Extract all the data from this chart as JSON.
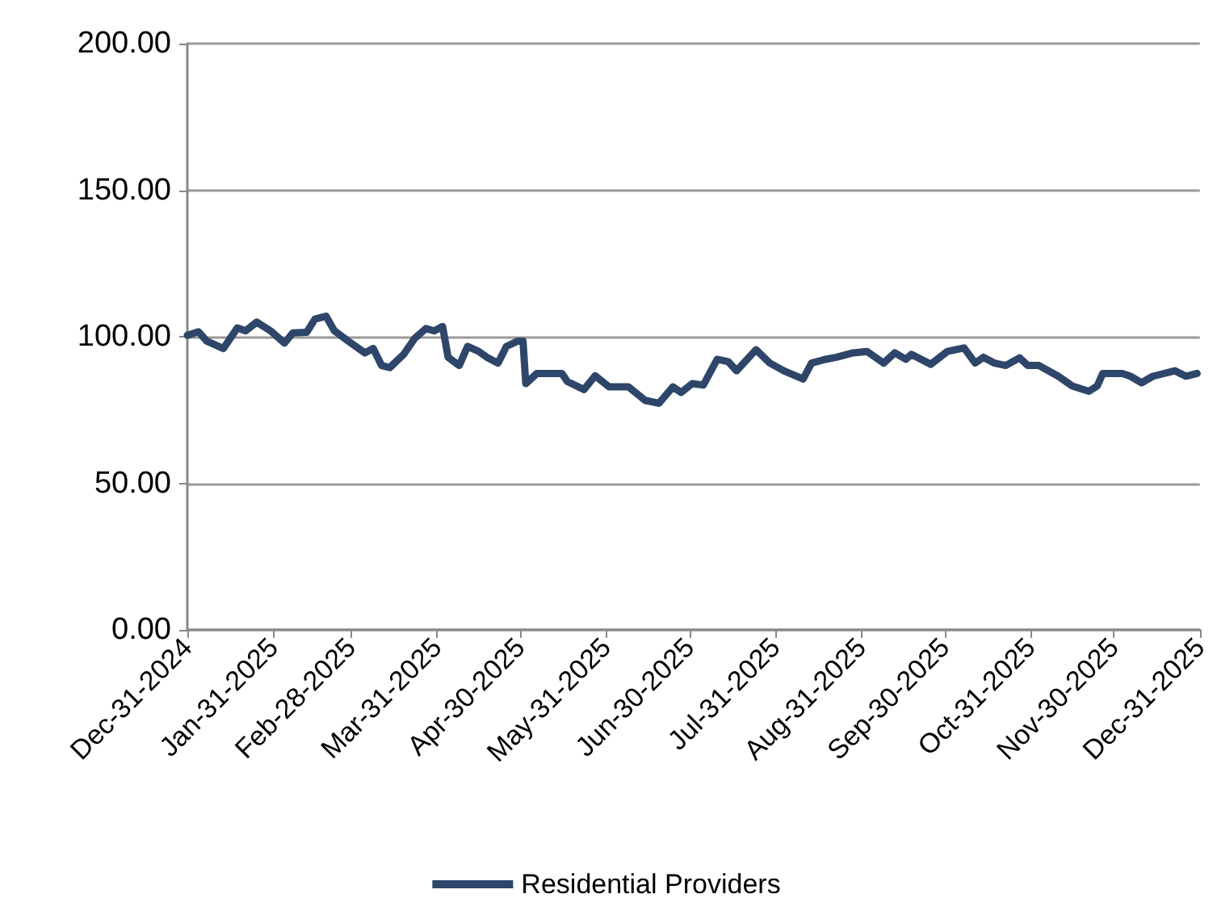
{
  "chart_data": {
    "type": "line",
    "x": [
      "2024-12-31",
      "2025-01-04",
      "2025-01-07",
      "2025-01-13",
      "2025-01-18",
      "2025-01-21",
      "2025-01-25",
      "2025-01-30",
      "2025-02-04",
      "2025-02-07",
      "2025-02-12",
      "2025-02-15",
      "2025-02-19",
      "2025-02-22",
      "2025-02-27",
      "2025-03-05",
      "2025-03-08",
      "2025-03-11",
      "2025-03-14",
      "2025-03-19",
      "2025-03-23",
      "2025-03-27",
      "2025-03-30",
      "2025-04-02",
      "2025-04-04",
      "2025-04-08",
      "2025-04-11",
      "2025-04-15",
      "2025-04-18",
      "2025-04-22",
      "2025-04-25",
      "2025-04-29",
      "2025-05-01",
      "2025-05-02",
      "2025-05-06",
      "2025-05-15",
      "2025-05-17",
      "2025-05-23",
      "2025-05-27",
      "2025-06-01",
      "2025-06-08",
      "2025-06-14",
      "2025-06-19",
      "2025-06-24",
      "2025-06-27",
      "2025-07-01",
      "2025-07-05",
      "2025-07-10",
      "2025-07-14",
      "2025-07-17",
      "2025-07-24",
      "2025-07-29",
      "2025-08-03",
      "2025-08-10",
      "2025-08-13",
      "2025-08-18",
      "2025-08-22",
      "2025-08-28",
      "2025-09-02",
      "2025-09-08",
      "2025-09-12",
      "2025-09-16",
      "2025-09-18",
      "2025-09-25",
      "2025-10-01",
      "2025-10-07",
      "2025-10-11",
      "2025-10-14",
      "2025-10-18",
      "2025-10-22",
      "2025-10-27",
      "2025-10-30",
      "2025-11-03",
      "2025-11-10",
      "2025-11-15",
      "2025-11-21",
      "2025-11-24",
      "2025-11-26",
      "2025-12-03",
      "2025-12-06",
      "2025-12-10",
      "2025-12-14",
      "2025-12-22",
      "2025-12-26",
      "2025-12-30"
    ],
    "series": [
      {
        "name": "Residential Providers",
        "color": "#2e4669",
        "values": [
          100.5,
          101.7,
          98.5,
          96,
          103,
          102,
          105,
          102,
          97.8,
          101.3,
          101.5,
          106,
          107,
          102,
          98.5,
          94.5,
          96,
          90.2,
          89.5,
          94,
          99.5,
          102.8,
          102,
          103.5,
          93,
          90.2,
          96.7,
          95,
          93,
          91,
          96.7,
          98.5,
          98.5,
          84,
          87.5,
          87.5,
          84.7,
          82,
          86.7,
          82.9,
          82.9,
          78.3,
          77.3,
          82.9,
          81,
          84,
          83.5,
          92.3,
          91.5,
          88.4,
          95.6,
          91,
          88.4,
          85.6,
          91,
          92.3,
          93,
          94.5,
          95,
          91,
          94.5,
          92.3,
          94,
          90.6,
          95,
          96.2,
          91,
          93,
          91,
          90.2,
          92.8,
          90.2,
          90.2,
          86.5,
          83.2,
          81.4,
          83.2,
          87.5,
          87.5,
          86.5,
          84.3,
          86.5,
          88.4,
          86.5,
          87.5
        ]
      }
    ],
    "xlim": [
      "2024-12-31",
      "2025-12-31"
    ],
    "xticks": [
      {
        "value": "2024-12-31",
        "label": "Dec-31-2024"
      },
      {
        "value": "2025-01-31",
        "label": "Jan-31-2025"
      },
      {
        "value": "2025-02-28",
        "label": "Feb-28-2025"
      },
      {
        "value": "2025-03-31",
        "label": "Mar-31-2025"
      },
      {
        "value": "2025-04-30",
        "label": "Apr-30-2025"
      },
      {
        "value": "2025-05-31",
        "label": "May-31-2025"
      },
      {
        "value": "2025-06-30",
        "label": "Jun-30-2025"
      },
      {
        "value": "2025-07-31",
        "label": "Jul-31-2025"
      },
      {
        "value": "2025-08-31",
        "label": "Aug-31-2025"
      },
      {
        "value": "2025-09-30",
        "label": "Sep-30-2025"
      },
      {
        "value": "2025-10-31",
        "label": "Oct-31-2025"
      },
      {
        "value": "2025-11-30",
        "label": "Nov-30-2025"
      },
      {
        "value": "2025-12-31",
        "label": "Dec-31-2025"
      }
    ],
    "ylim": [
      0,
      200
    ],
    "yticks": [
      {
        "value": 0,
        "label": "0.00"
      },
      {
        "value": 50,
        "label": "50.00"
      },
      {
        "value": 100,
        "label": "100.00"
      },
      {
        "value": 150,
        "label": "150.00"
      },
      {
        "value": 200,
        "label": "200.00"
      }
    ],
    "grid": "y",
    "legend": "bottom",
    "marker": "none",
    "line_style": "solid"
  }
}
